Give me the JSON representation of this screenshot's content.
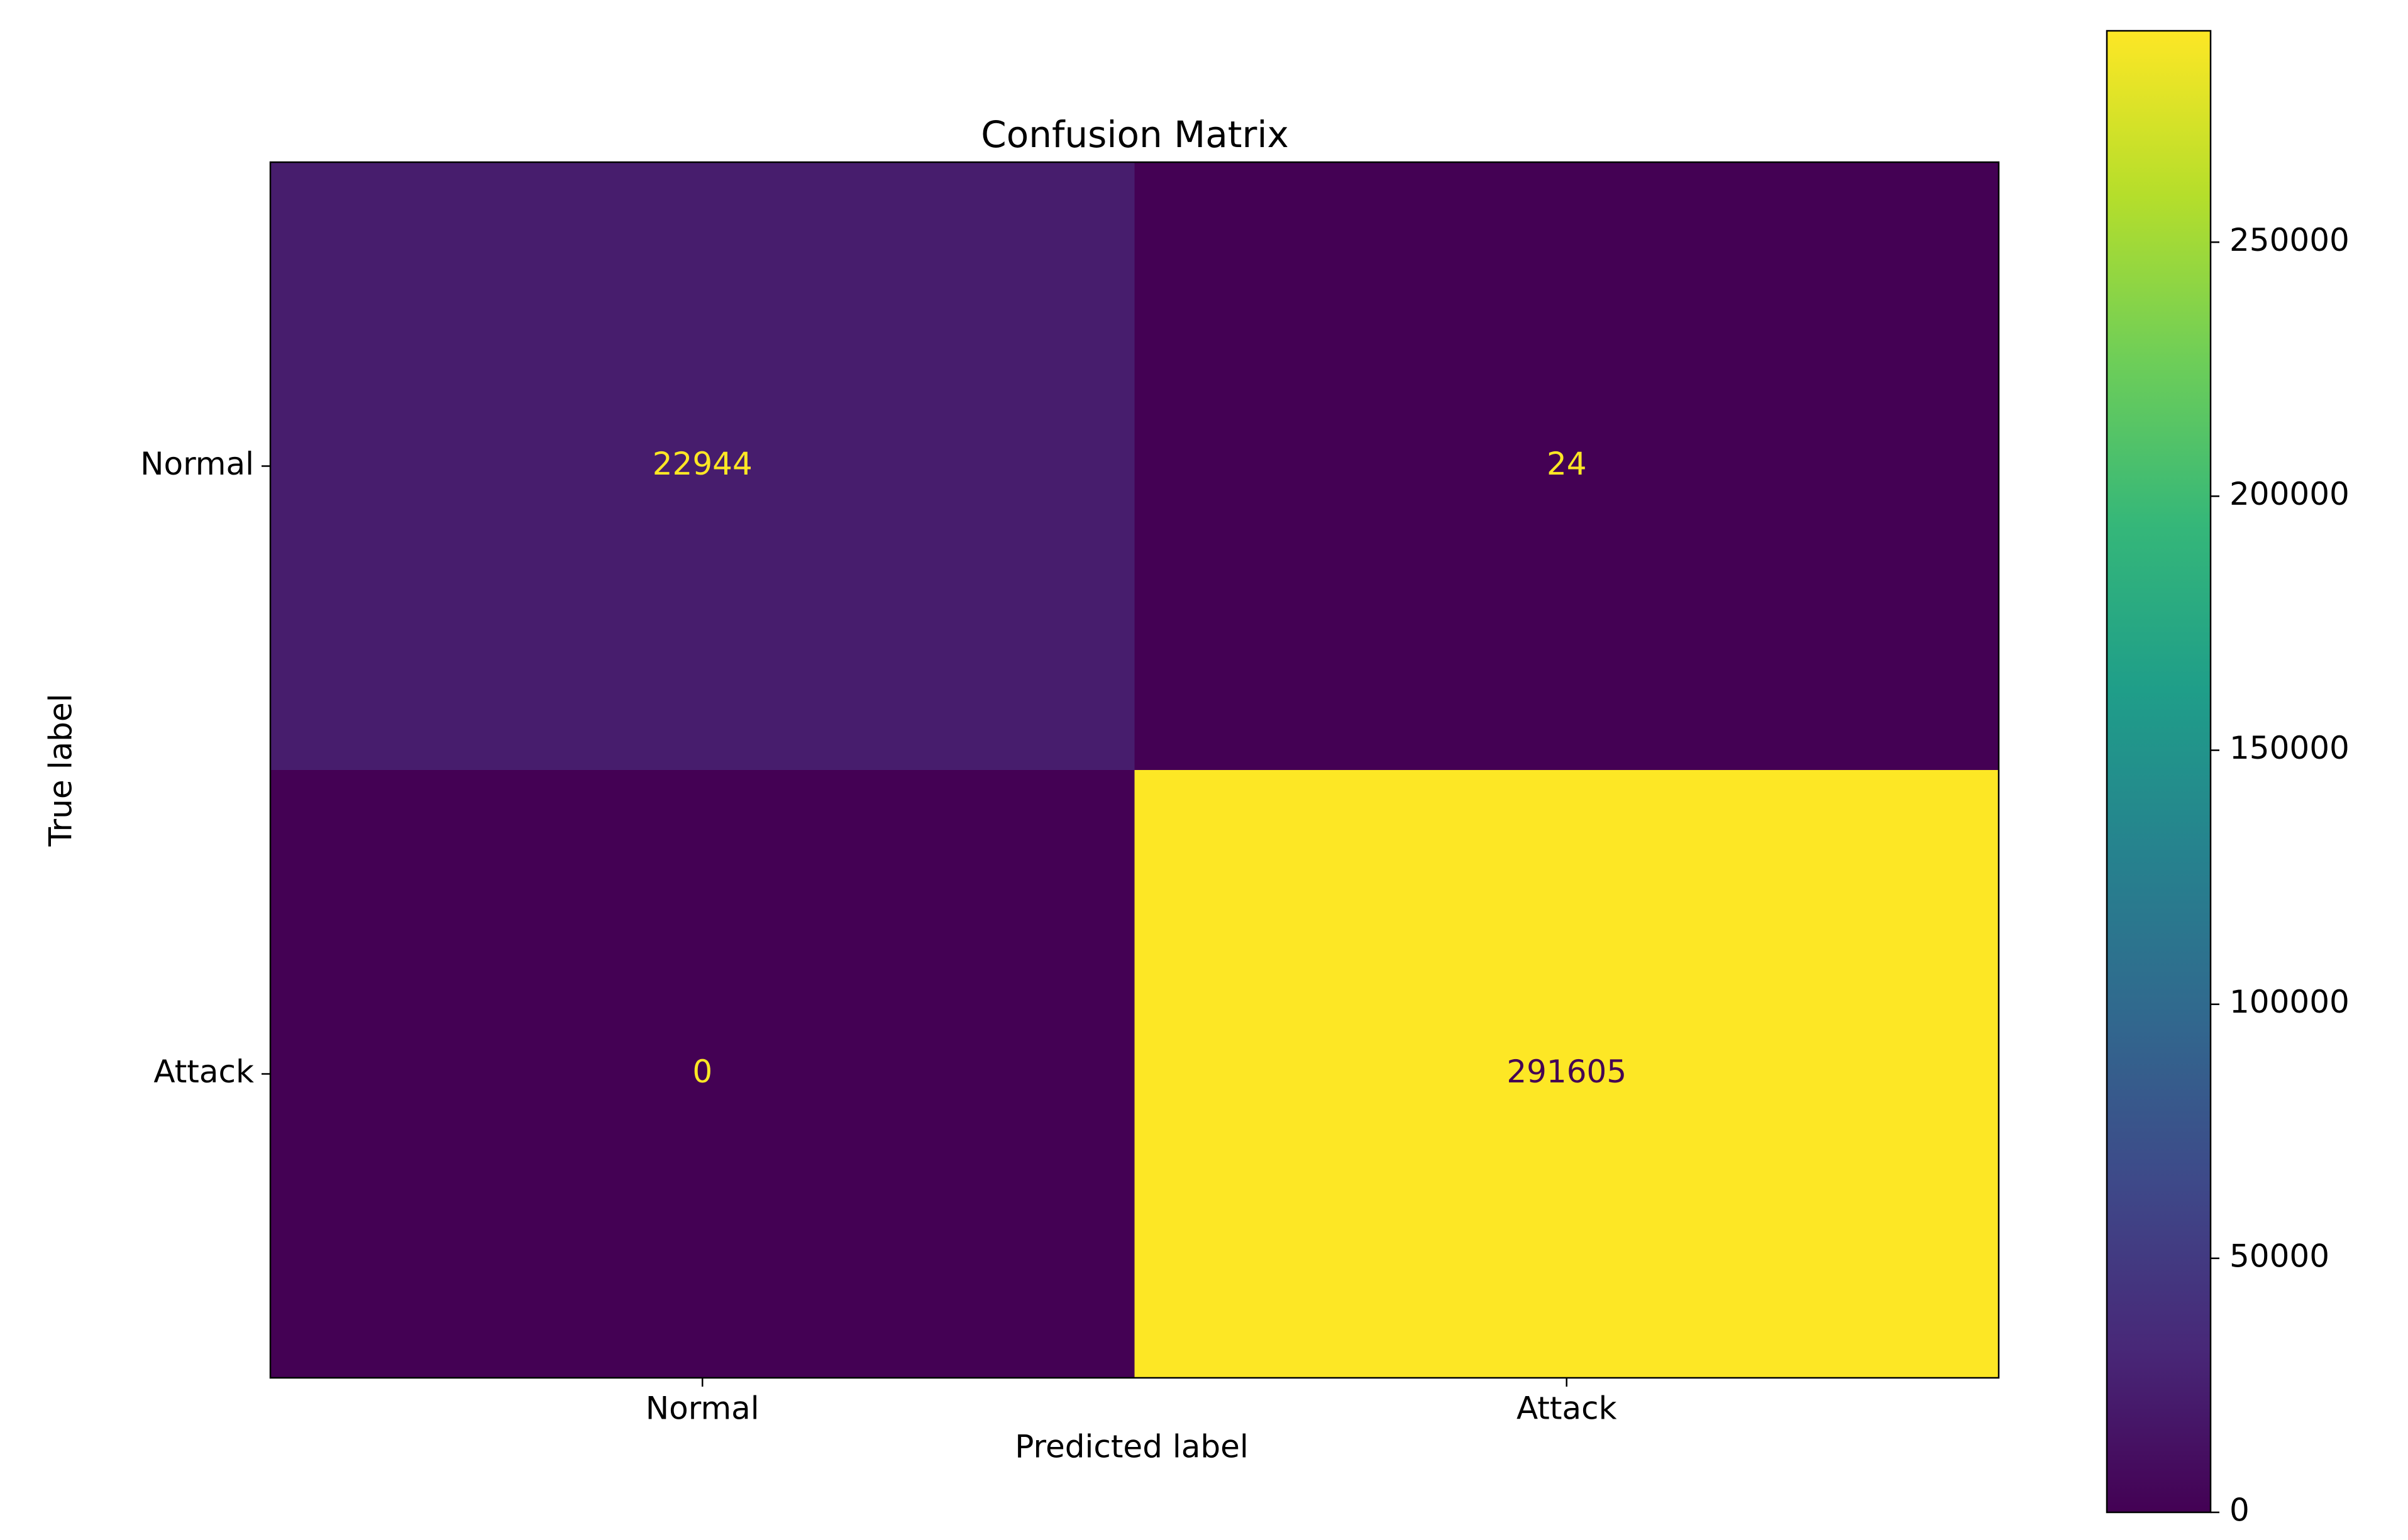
{
  "chart_data": {
    "type": "heatmap",
    "title": "Confusion Matrix",
    "x_label": "Predicted label",
    "y_label": "True label",
    "x_categories": [
      "Normal",
      "Attack"
    ],
    "y_categories": [
      "Normal",
      "Attack"
    ],
    "values": [
      [
        22944,
        24
      ],
      [
        0,
        291605
      ]
    ],
    "colormap": "viridis",
    "clim": [
      0,
      291605
    ],
    "colorbar_ticks": [
      0,
      50000,
      100000,
      150000,
      200000,
      250000
    ]
  }
}
